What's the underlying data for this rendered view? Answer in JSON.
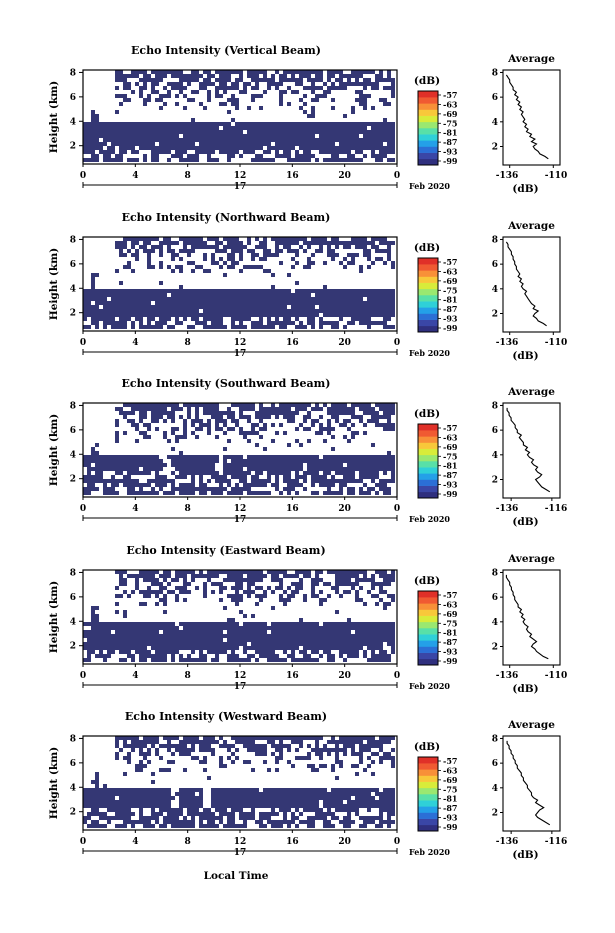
{
  "figure": {
    "bottom_xlabel": "Local Time"
  },
  "colorbar": {
    "unit": "(dB)",
    "tick_labels": [
      "-57",
      "-63",
      "-69",
      "-75",
      "-81",
      "-87",
      "-93",
      "-99"
    ],
    "colors": [
      "#2f2f7e",
      "#3a46a6",
      "#2b6fd6",
      "#24a0e8",
      "#2fd0d8",
      "#58e0a8",
      "#9ae870",
      "#d8ec3a",
      "#f8c83a",
      "#f89038",
      "#f05a32",
      "#e03028"
    ]
  },
  "chart_data": [
    {
      "type": "heatmap",
      "title": "Echo Intensity (Vertical Beam)",
      "ylabel": "Height (km)",
      "x_ticks": [
        "0",
        "4",
        "8",
        "12",
        "16",
        "20",
        "0"
      ],
      "y_ticks": [
        "2",
        "4",
        "6",
        "8"
      ],
      "date_label": "17",
      "date_suffix": "Feb 2020",
      "xlim": [
        0,
        24
      ],
      "ylim": [
        0.5,
        8.2
      ],
      "fill_color": "#343774",
      "band": {
        "bottom": 1.7,
        "top": 3.9
      },
      "upper_clutter_base": 4.9,
      "profile": {
        "title": "Average",
        "xlabel": "(dB)",
        "x_ticks": [
          "-136",
          "-110"
        ],
        "xlim": [
          -140,
          -106
        ],
        "ylim": [
          0.5,
          8.2
        ],
        "height": [
          1.0,
          1.2,
          1.4,
          1.6,
          1.8,
          2.0,
          2.2,
          2.4,
          2.6,
          2.8,
          3.0,
          3.2,
          3.4,
          3.6,
          3.8,
          4.0,
          4.2,
          4.4,
          4.6,
          4.8,
          5.0,
          5.2,
          5.4,
          5.6,
          5.8,
          6.0,
          6.2,
          6.4,
          6.6,
          6.8,
          7.0,
          7.2,
          7.4,
          7.6,
          7.8
        ],
        "intensity": [
          -113,
          -115,
          -118,
          -119,
          -121,
          -122,
          -120,
          -123,
          -121,
          -124,
          -123,
          -126,
          -125,
          -127,
          -126,
          -128,
          -127,
          -128,
          -129,
          -128,
          -130,
          -129,
          -131,
          -130,
          -132,
          -131,
          -133,
          -132,
          -134,
          -134,
          -135,
          -136,
          -136,
          -137,
          -138
        ]
      }
    },
    {
      "type": "heatmap",
      "title": "Echo Intensity (Northward Beam)",
      "ylabel": "Height (km)",
      "x_ticks": [
        "0",
        "4",
        "8",
        "12",
        "16",
        "20",
        "0"
      ],
      "y_ticks": [
        "2",
        "4",
        "6",
        "8"
      ],
      "date_label": "17",
      "date_suffix": "Feb 2020",
      "xlim": [
        0,
        24
      ],
      "ylim": [
        0.5,
        8.2
      ],
      "fill_color": "#343774",
      "band": {
        "bottom": 1.6,
        "top": 3.9
      },
      "upper_clutter_base": 5.2,
      "profile": {
        "title": "Average",
        "xlabel": "(dB)",
        "x_ticks": [
          "-136",
          "-110"
        ],
        "xlim": [
          -140,
          -106
        ],
        "ylim": [
          0.5,
          8.2
        ],
        "height": [
          1.0,
          1.2,
          1.4,
          1.6,
          1.8,
          2.0,
          2.2,
          2.4,
          2.6,
          2.8,
          3.0,
          3.2,
          3.4,
          3.6,
          3.8,
          4.0,
          4.2,
          4.4,
          4.6,
          4.8,
          5.0,
          5.2,
          5.4,
          5.6,
          5.8,
          6.0,
          6.2,
          6.4,
          6.6,
          6.8,
          7.0,
          7.2,
          7.4,
          7.6,
          7.8
        ],
        "intensity": [
          -114,
          -116,
          -119,
          -120,
          -122,
          -121,
          -119,
          -122,
          -121,
          -123,
          -124,
          -125,
          -126,
          -127,
          -126,
          -128,
          -129,
          -128,
          -130,
          -129,
          -131,
          -130,
          -131,
          -132,
          -132,
          -133,
          -133,
          -134,
          -134,
          -135,
          -135,
          -136,
          -137,
          -137,
          -138
        ]
      }
    },
    {
      "type": "heatmap",
      "title": "Echo Intensity (Southward Beam)",
      "ylabel": "Height (km)",
      "x_ticks": [
        "0",
        "4",
        "8",
        "12",
        "16",
        "20",
        "0"
      ],
      "y_ticks": [
        "2",
        "4",
        "6",
        "8"
      ],
      "date_label": "17",
      "date_suffix": "Feb 2020",
      "xlim": [
        0,
        24
      ],
      "ylim": [
        0.5,
        8.2
      ],
      "fill_color": "#343774",
      "band": {
        "bottom": 2.7,
        "top": 3.9
      },
      "upper_clutter_base": 5.0,
      "profile": {
        "title": "Average",
        "xlabel": "(dB)",
        "x_ticks": [
          "-136",
          "-116"
        ],
        "xlim": [
          -140,
          -112
        ],
        "ylim": [
          0.5,
          8.2
        ],
        "height": [
          1.0,
          1.2,
          1.4,
          1.6,
          1.8,
          2.0,
          2.2,
          2.4,
          2.6,
          2.8,
          3.0,
          3.2,
          3.4,
          3.6,
          3.8,
          4.0,
          4.2,
          4.4,
          4.6,
          4.8,
          5.0,
          5.2,
          5.4,
          5.6,
          5.8,
          6.0,
          6.2,
          6.4,
          6.6,
          6.8,
          7.0,
          7.2,
          7.4,
          7.6,
          7.8
        ],
        "intensity": [
          -117,
          -119,
          -121,
          -122,
          -123,
          -124,
          -122,
          -121,
          -123,
          -124,
          -123,
          -125,
          -126,
          -125,
          -127,
          -128,
          -127,
          -129,
          -128,
          -130,
          -130,
          -131,
          -132,
          -131,
          -133,
          -133,
          -134,
          -134,
          -135,
          -136,
          -136,
          -137,
          -137,
          -138,
          -138
        ]
      }
    },
    {
      "type": "heatmap",
      "title": "Echo Intensity (Eastward Beam)",
      "ylabel": "Height (km)",
      "x_ticks": [
        "0",
        "4",
        "8",
        "12",
        "16",
        "20",
        "0"
      ],
      "y_ticks": [
        "2",
        "4",
        "6",
        "8"
      ],
      "date_label": "17",
      "date_suffix": "Feb 2020",
      "xlim": [
        0,
        24
      ],
      "ylim": [
        0.5,
        8.2
      ],
      "fill_color": "#343774",
      "band": {
        "bottom": 1.5,
        "top": 3.8
      },
      "upper_clutter_base": 5.1,
      "profile": {
        "title": "Average",
        "xlabel": "(dB)",
        "x_ticks": [
          "-136",
          "-110"
        ],
        "xlim": [
          -140,
          -106
        ],
        "ylim": [
          0.5,
          8.2
        ],
        "height": [
          1.0,
          1.2,
          1.4,
          1.6,
          1.8,
          2.0,
          2.2,
          2.4,
          2.6,
          2.8,
          3.0,
          3.2,
          3.4,
          3.6,
          3.8,
          4.0,
          4.2,
          4.4,
          4.6,
          4.8,
          5.0,
          5.2,
          5.4,
          5.6,
          5.8,
          6.0,
          6.2,
          6.4,
          6.6,
          6.8,
          7.0,
          7.2,
          7.4,
          7.6,
          7.8
        ],
        "intensity": [
          -113,
          -116,
          -118,
          -120,
          -121,
          -123,
          -122,
          -120,
          -122,
          -124,
          -123,
          -125,
          -126,
          -125,
          -127,
          -128,
          -127,
          -129,
          -128,
          -130,
          -129,
          -131,
          -131,
          -132,
          -133,
          -133,
          -134,
          -134,
          -135,
          -135,
          -136,
          -136,
          -137,
          -138,
          -138
        ]
      }
    },
    {
      "type": "heatmap",
      "title": "Echo Intensity (Westward Beam)",
      "ylabel": "Height (km)",
      "x_ticks": [
        "0",
        "4",
        "8",
        "12",
        "16",
        "20",
        "0"
      ],
      "y_ticks": [
        "2",
        "4",
        "6",
        "8"
      ],
      "date_label": "17",
      "date_suffix": "Feb 2020",
      "xlim": [
        0,
        24
      ],
      "ylim": [
        0.5,
        8.2
      ],
      "fill_color": "#343774",
      "band": {
        "bottom": 2.4,
        "top": 3.9
      },
      "upper_clutter_base": 5.3,
      "profile": {
        "title": "Average",
        "xlabel": "(dB)",
        "x_ticks": [
          "-136",
          "-116"
        ],
        "xlim": [
          -140,
          -112
        ],
        "ylim": [
          0.5,
          8.2
        ],
        "height": [
          1.0,
          1.2,
          1.4,
          1.6,
          1.8,
          2.0,
          2.2,
          2.4,
          2.6,
          2.8,
          3.0,
          3.2,
          3.4,
          3.6,
          3.8,
          4.0,
          4.2,
          4.4,
          4.6,
          4.8,
          5.0,
          5.2,
          5.4,
          5.6,
          5.8,
          6.0,
          6.2,
          6.4,
          6.6,
          6.8,
          7.0,
          7.2,
          7.4,
          7.6,
          7.8
        ],
        "intensity": [
          -117,
          -119,
          -121,
          -123,
          -124,
          -123,
          -122,
          -120,
          -122,
          -124,
          -123,
          -125,
          -126,
          -126,
          -127,
          -128,
          -128,
          -129,
          -130,
          -130,
          -131,
          -131,
          -132,
          -133,
          -133,
          -134,
          -134,
          -135,
          -135,
          -136,
          -136,
          -137,
          -137,
          -138,
          -138
        ]
      }
    }
  ]
}
